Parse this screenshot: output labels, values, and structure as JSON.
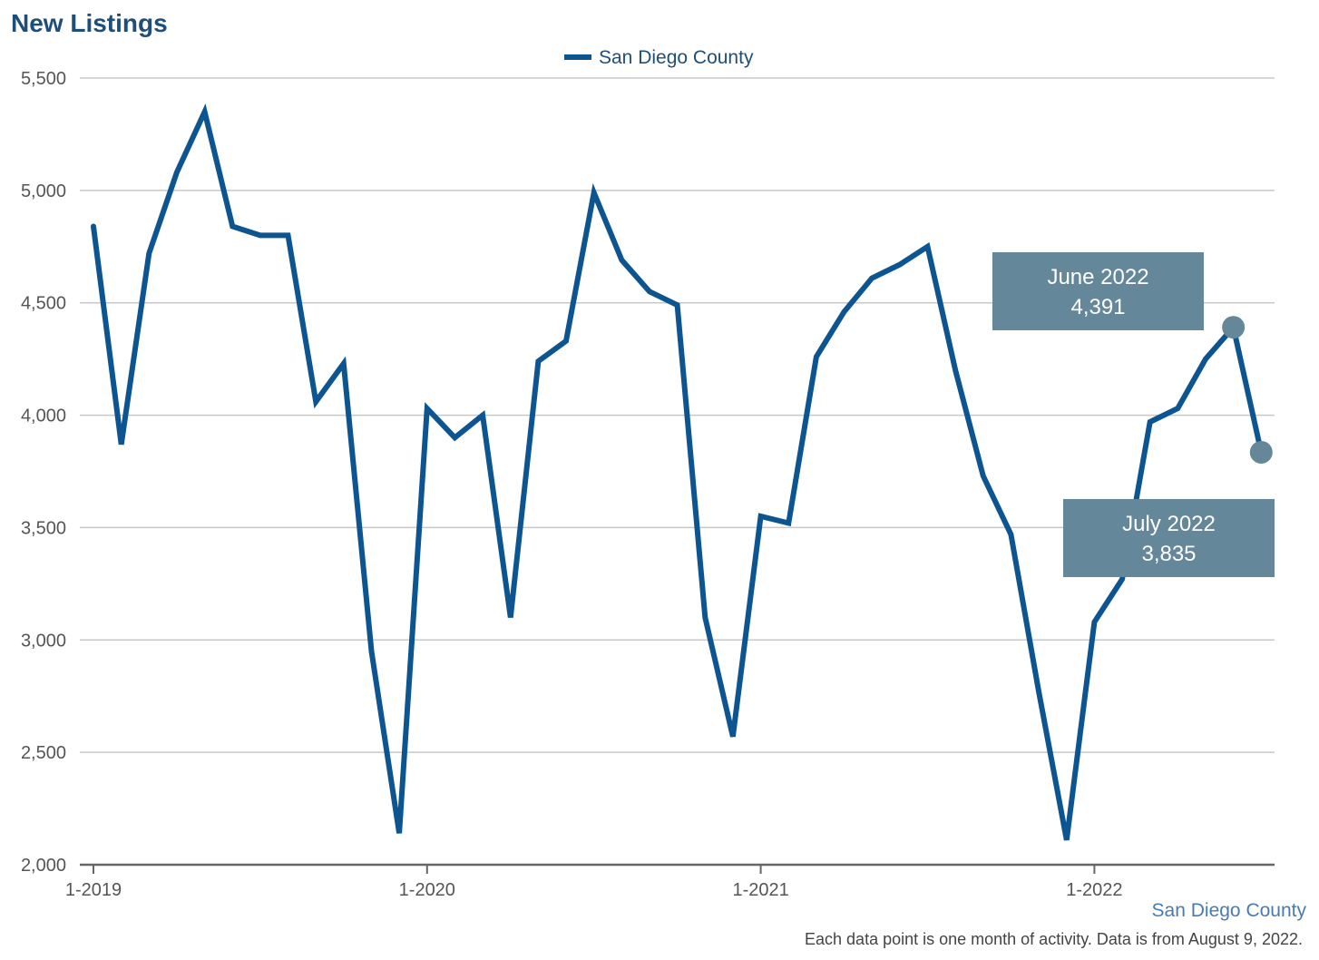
{
  "title": "New Listings",
  "source_label": "San Diego County",
  "footnote": "Each data point is one month of activity. Data is from August 9, 2022.",
  "colors": {
    "line": "#0d5591",
    "grid": "#c8c8c8",
    "axis": "#666666",
    "callout": "#64879a",
    "title": "#1f4e79"
  },
  "chart_data": {
    "type": "line",
    "x_tick_labels": [
      "1-2019",
      "1-2020",
      "1-2021",
      "1-2022"
    ],
    "ylim": [
      2000,
      5500
    ],
    "y_ticks": [
      2000,
      2500,
      3000,
      3500,
      4000,
      4500,
      5000,
      5500
    ],
    "y_tick_labels": [
      "2,000",
      "2,500",
      "3,000",
      "3,500",
      "4,000",
      "4,500",
      "5,000",
      "5,500"
    ],
    "grid": true,
    "legend_position": "top-center",
    "series": [
      {
        "name": "San Diego County",
        "x": [
          "2019-01",
          "2019-02",
          "2019-03",
          "2019-04",
          "2019-05",
          "2019-06",
          "2019-07",
          "2019-08",
          "2019-09",
          "2019-10",
          "2019-11",
          "2019-12",
          "2020-01",
          "2020-02",
          "2020-03",
          "2020-04",
          "2020-05",
          "2020-06",
          "2020-07",
          "2020-08",
          "2020-09",
          "2020-10",
          "2020-11",
          "2020-12",
          "2021-01",
          "2021-02",
          "2021-03",
          "2021-04",
          "2021-05",
          "2021-06",
          "2021-07",
          "2021-08",
          "2021-09",
          "2021-10",
          "2021-11",
          "2021-12",
          "2022-01",
          "2022-02",
          "2022-03",
          "2022-04",
          "2022-05",
          "2022-06",
          "2022-07"
        ],
        "values": [
          4840,
          3870,
          4720,
          5080,
          5350,
          4840,
          4800,
          4800,
          4060,
          4230,
          2950,
          2140,
          4030,
          3900,
          4000,
          3100,
          4240,
          4330,
          4990,
          4690,
          4550,
          4490,
          3100,
          2570,
          3550,
          3520,
          4260,
          4460,
          4610,
          4670,
          4750,
          4200,
          3730,
          3470,
          2770,
          2110,
          3080,
          3270,
          3970,
          4030,
          4250,
          4391,
          3835
        ]
      }
    ],
    "annotations": [
      {
        "month": "June 2022",
        "value": "4,391"
      },
      {
        "month": "July 2022",
        "value": "3,835"
      }
    ]
  }
}
